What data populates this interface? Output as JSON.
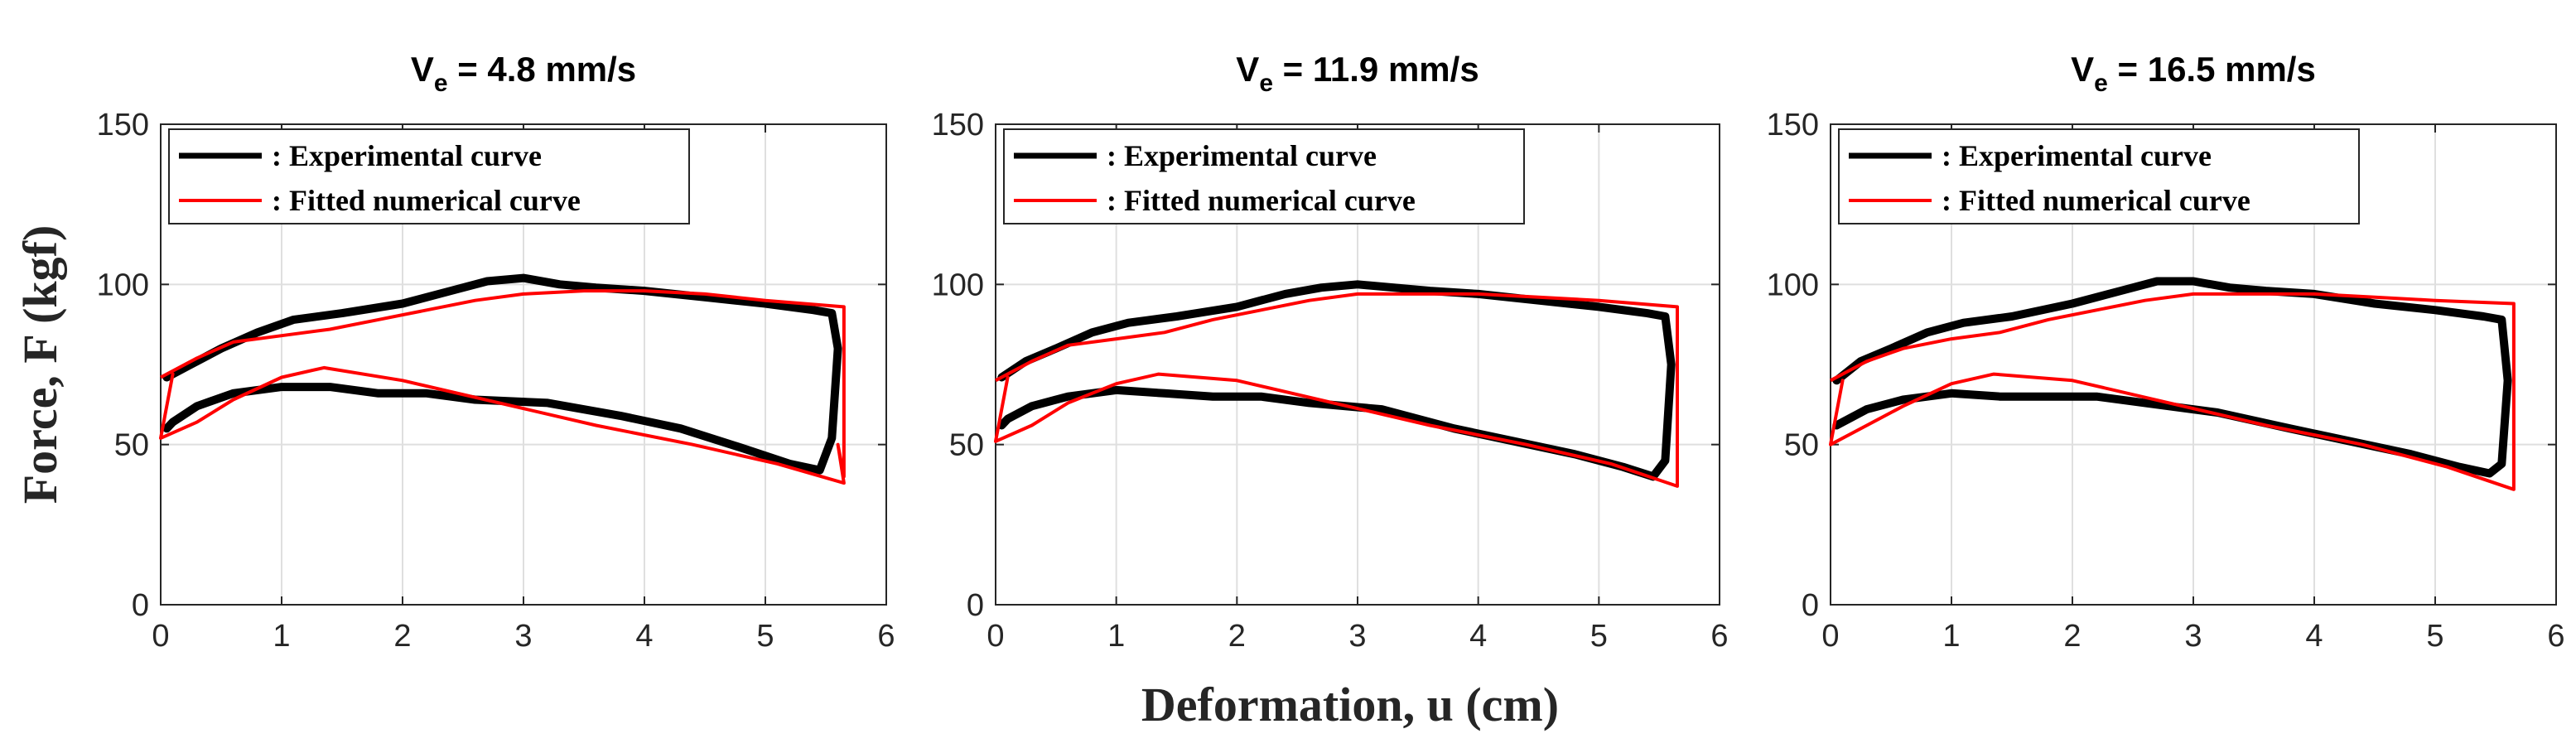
{
  "figure": {
    "ylabel": "Force, F (kgf)",
    "xlabel": "Deformation, u (cm)"
  },
  "colors": {
    "experimental": "#000000",
    "fitted": "#ff0000",
    "grid": "#dfdfdf",
    "axis": "#262626"
  },
  "chart_data": [
    {
      "type": "line",
      "title_main": "V",
      "title_sub": "e",
      "title_rest": " = 4.8 mm/s",
      "xlim": [
        0,
        6
      ],
      "ylim": [
        0,
        150
      ],
      "xticks": [
        "0",
        "1",
        "2",
        "3",
        "4",
        "5",
        "6"
      ],
      "yticks": [
        "0",
        "50",
        "100",
        "150"
      ],
      "grid": true,
      "legend": [
        "Experimental curve",
        "Fitted numerical curve"
      ],
      "legend_prefix": ": ",
      "legend_position": "top-left",
      "series": [
        {
          "name": "Experimental curve",
          "x": [
            0.05,
            0.25,
            0.5,
            0.8,
            1.1,
            1.5,
            2.0,
            2.4,
            2.7,
            3.0,
            3.3,
            3.6,
            4.0,
            4.5,
            5.0,
            5.4,
            5.55,
            5.6,
            5.55,
            5.45,
            5.2,
            4.8,
            4.3,
            3.8,
            3.2,
            2.6,
            2.2,
            1.8,
            1.4,
            1.0,
            0.6,
            0.3,
            0.1,
            0.05
          ],
          "y": [
            71,
            75,
            80,
            85,
            89,
            91,
            94,
            98,
            101,
            102,
            100,
            99,
            98,
            96,
            94,
            92,
            91,
            80,
            52,
            42,
            44,
            49,
            55,
            59,
            63,
            64,
            66,
            66,
            68,
            68,
            66,
            62,
            57,
            55
          ]
        },
        {
          "name": "Fitted numerical curve",
          "x": [
            0,
            0.3,
            0.6,
            1.0,
            1.4,
            1.8,
            2.2,
            2.6,
            3.0,
            3.5,
            4.0,
            4.5,
            5.0,
            5.65,
            5.65,
            5.6,
            5.65,
            5.1,
            4.4,
            3.6,
            2.8,
            2.0,
            1.35,
            1.0,
            0.6,
            0.3,
            0,
            0.1,
            0
          ],
          "y": [
            71,
            77,
            82,
            84,
            86,
            89,
            92,
            95,
            97,
            98,
            98,
            97,
            95,
            93,
            40,
            50,
            38,
            44,
            50,
            56,
            63,
            70,
            74,
            71,
            64,
            57,
            52,
            72,
            52
          ]
        }
      ]
    },
    {
      "type": "line",
      "title_main": "V",
      "title_sub": "e",
      "title_rest": " = 11.9 mm/s",
      "xlim": [
        0,
        6
      ],
      "ylim": [
        0,
        150
      ],
      "xticks": [
        "0",
        "1",
        "2",
        "3",
        "4",
        "5",
        "6"
      ],
      "yticks": [
        "0",
        "50",
        "100",
        "150"
      ],
      "grid": true,
      "legend": [
        "Experimental curve",
        "Fitted numerical curve"
      ],
      "legend_prefix": ": ",
      "legend_position": "top-left",
      "series": [
        {
          "name": "Experimental curve",
          "x": [
            0.05,
            0.25,
            0.5,
            0.8,
            1.1,
            1.5,
            2.0,
            2.4,
            2.7,
            3.0,
            3.3,
            3.6,
            4.0,
            4.5,
            5.0,
            5.4,
            5.55,
            5.6,
            5.55,
            5.45,
            5.2,
            4.8,
            4.3,
            3.8,
            3.2,
            2.6,
            2.2,
            1.8,
            1.4,
            1.0,
            0.6,
            0.3,
            0.1,
            0.05
          ],
          "y": [
            71,
            76,
            80,
            85,
            88,
            90,
            93,
            97,
            99,
            100,
            99,
            98,
            97,
            95,
            93,
            91,
            90,
            75,
            45,
            40,
            43,
            47,
            51,
            55,
            61,
            63,
            65,
            65,
            66,
            67,
            65,
            62,
            58,
            56
          ]
        },
        {
          "name": "Fitted numerical curve",
          "x": [
            0,
            0.3,
            0.6,
            1.0,
            1.4,
            1.8,
            2.2,
            2.6,
            3.0,
            3.5,
            4.0,
            4.5,
            5.0,
            5.65,
            5.65,
            5.65,
            5.1,
            4.4,
            3.6,
            2.8,
            2.0,
            1.35,
            1.0,
            0.6,
            0.3,
            0,
            0.1,
            0
          ],
          "y": [
            70,
            76,
            81,
            83,
            85,
            89,
            92,
            95,
            97,
            97,
            97,
            96,
            95,
            93,
            50,
            37,
            44,
            50,
            56,
            63,
            70,
            72,
            69,
            63,
            56,
            51,
            71,
            51
          ]
        }
      ]
    },
    {
      "type": "line",
      "title_main": "V",
      "title_sub": "e",
      "title_rest": " = 16.5 mm/s",
      "xlim": [
        0,
        6
      ],
      "ylim": [
        0,
        150
      ],
      "xticks": [
        "0",
        "1",
        "2",
        "3",
        "4",
        "5",
        "6"
      ],
      "yticks": [
        "0",
        "50",
        "100",
        "150"
      ],
      "grid": true,
      "legend": [
        "Experimental curve",
        "Fitted numerical curve"
      ],
      "legend_prefix": ": ",
      "legend_position": "top-left",
      "series": [
        {
          "name": "Experimental curve",
          "x": [
            0.05,
            0.25,
            0.5,
            0.8,
            1.1,
            1.5,
            2.0,
            2.4,
            2.7,
            3.0,
            3.3,
            3.6,
            4.0,
            4.5,
            5.0,
            5.4,
            5.55,
            5.6,
            5.55,
            5.45,
            5.2,
            4.8,
            4.3,
            3.8,
            3.2,
            2.6,
            2.2,
            1.8,
            1.4,
            1.0,
            0.6,
            0.3,
            0.1,
            0.05
          ],
          "y": [
            70,
            76,
            80,
            85,
            88,
            90,
            94,
            98,
            101,
            101,
            99,
            98,
            97,
            94,
            92,
            90,
            89,
            70,
            44,
            41,
            43,
            47,
            51,
            55,
            60,
            63,
            65,
            65,
            65,
            66,
            64,
            61,
            57,
            56
          ]
        },
        {
          "name": "Fitted numerical curve",
          "x": [
            0,
            0.3,
            0.6,
            1.0,
            1.4,
            1.8,
            2.2,
            2.6,
            3.0,
            3.5,
            4.0,
            4.5,
            5.0,
            5.65,
            5.65,
            5.65,
            5.1,
            4.4,
            3.6,
            2.8,
            2.0,
            1.35,
            1.0,
            0.6,
            0.3,
            0,
            0.1,
            0
          ],
          "y": [
            70,
            76,
            80,
            83,
            85,
            89,
            92,
            95,
            97,
            97,
            97,
            96,
            95,
            94,
            50,
            36,
            43,
            50,
            56,
            63,
            70,
            72,
            69,
            62,
            56,
            50,
            70,
            50
          ]
        }
      ]
    }
  ]
}
